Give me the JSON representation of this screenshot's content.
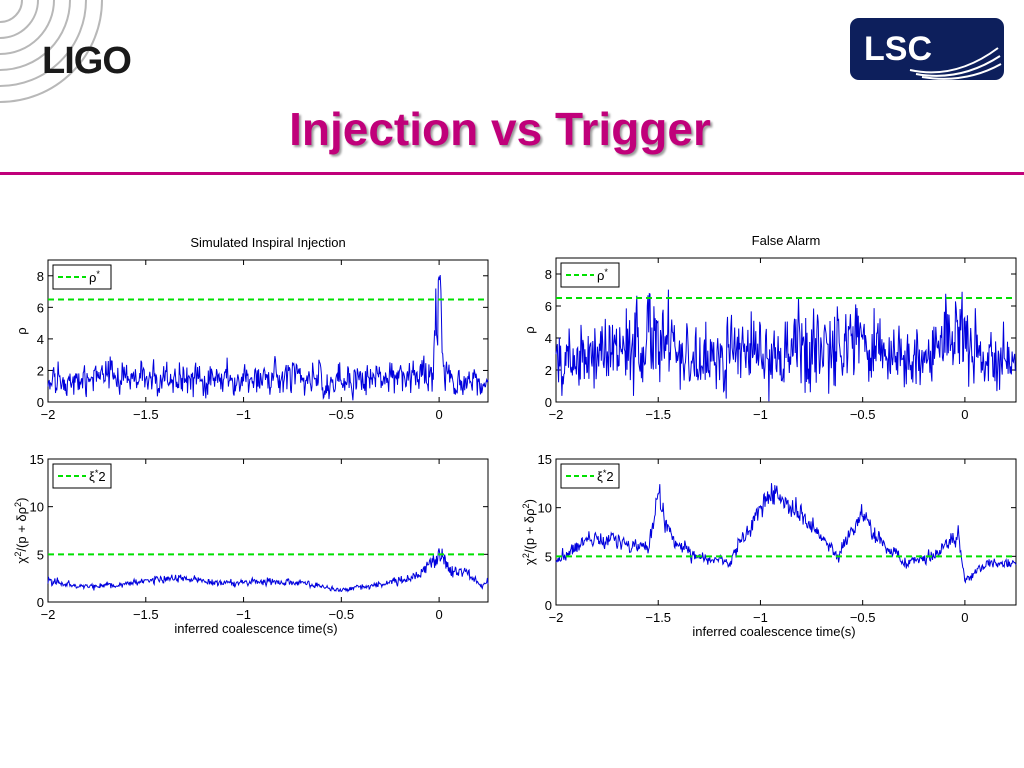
{
  "header": {
    "logo_text": "LIGO",
    "badge_text": "LSC",
    "title": "Injection vs Trigger",
    "colors": {
      "title": "#c0007a",
      "rule": "#c0007a",
      "badge": "#0d1f5c"
    }
  },
  "chart_data": [
    {
      "type": "line",
      "panel": "top-left",
      "title": "Simulated Inspiral Injection",
      "xlabel": "",
      "ylabel": "ρ",
      "xlim": [
        -2,
        0.25
      ],
      "ylim": [
        0,
        9
      ],
      "xticks": [
        "−2",
        "−1.5",
        "−1",
        "−0.5",
        "0"
      ],
      "yticks": [
        "0",
        "2",
        "4",
        "6",
        "8"
      ],
      "legend": "top-left",
      "threshold": {
        "name": "ρ*",
        "value": 6.5,
        "color": "#00e000",
        "dashed": true
      },
      "series": [
        {
          "color": "#0000dd",
          "base": 1.3,
          "noise": 0.75,
          "smooth": 0.3,
          "x": [
            -2,
            -1.7,
            -1.45,
            -1.2,
            -0.99,
            -0.72,
            -0.5,
            -0.3,
            -0.1,
            -0.03,
            0,
            0.02,
            0.1,
            0.25
          ],
          "y": [
            1.2,
            1.6,
            1.4,
            1.5,
            1.3,
            1.6,
            1.4,
            1.5,
            1.5,
            2.2,
            7.8,
            2.0,
            1.2,
            1.2
          ]
        }
      ]
    },
    {
      "type": "line",
      "panel": "top-right",
      "title": "False Alarm",
      "xlabel": "",
      "ylabel": "ρ",
      "xlim": [
        -2,
        0.25
      ],
      "ylim": [
        0,
        9
      ],
      "xticks": [
        "−2",
        "−1.5",
        "−1",
        "−0.5",
        "0"
      ],
      "yticks": [
        "0",
        "2",
        "4",
        "6",
        "8"
      ],
      "legend": "top-left",
      "threshold": {
        "name": "ρ*",
        "value": 6.5,
        "color": "#00e000",
        "dashed": true
      },
      "series": [
        {
          "color": "#0000dd",
          "base": 2.6,
          "noise": 1.5,
          "smooth": 0.15,
          "x": [
            -2,
            -1.8,
            -1.65,
            -1.5,
            -1.35,
            -1.15,
            -1.0,
            -0.8,
            -0.6,
            -0.5,
            -0.3,
            -0.15,
            0,
            0.1,
            0.25
          ],
          "y": [
            2.4,
            3.0,
            3.6,
            4.2,
            2.6,
            3.0,
            2.8,
            3.8,
            3.2,
            3.8,
            2.6,
            3.0,
            4.6,
            2.4,
            2.8
          ]
        }
      ]
    },
    {
      "type": "line",
      "panel": "bottom-left",
      "title": "",
      "xlabel": "inferred coalescence time(s)",
      "ylabel": "χ²/(p + δρ²)",
      "xlim": [
        -2,
        0.25
      ],
      "ylim": [
        0,
        15
      ],
      "xticks": [
        "−2",
        "−1.5",
        "−1",
        "−0.5",
        "0"
      ],
      "yticks": [
        "0",
        "5",
        "10",
        "15"
      ],
      "legend": "top-left",
      "threshold": {
        "name": "ξ*2",
        "value": 5,
        "color": "#00e000",
        "dashed": true
      },
      "series": [
        {
          "color": "#0000dd",
          "base": 2.0,
          "noise": 0.3,
          "smooth": 0.12,
          "x": [
            -2,
            -1.85,
            -1.6,
            -1.35,
            -1.1,
            -0.9,
            -0.7,
            -0.52,
            -0.3,
            -0.12,
            -0.03,
            0,
            0.05,
            0.15,
            0.22,
            0.25
          ],
          "y": [
            2.3,
            1.6,
            1.9,
            2.6,
            1.9,
            2.2,
            2.0,
            1.2,
            1.9,
            2.6,
            4.2,
            5.3,
            3.3,
            3.0,
            1.6,
            2.2
          ]
        }
      ]
    },
    {
      "type": "line",
      "panel": "bottom-right",
      "title": "",
      "xlabel": "inferred coalescence time(s)",
      "ylabel": "χ²/(p + δρ²)",
      "xlim": [
        -2,
        0.25
      ],
      "ylim": [
        0,
        15
      ],
      "xticks": [
        "−2",
        "−1.5",
        "−1",
        "−0.5",
        "0"
      ],
      "yticks": [
        "0",
        "5",
        "10",
        "15"
      ],
      "legend": "top-left",
      "threshold": {
        "name": "ξ*2",
        "value": 5,
        "color": "#00e000",
        "dashed": true
      },
      "series": [
        {
          "color": "#0000dd",
          "base": 5.5,
          "noise": 0.55,
          "smooth": 0.2,
          "x": [
            -2,
            -1.85,
            -1.7,
            -1.55,
            -1.5,
            -1.42,
            -1.3,
            -1.15,
            -0.95,
            -0.85,
            -0.75,
            -0.62,
            -0.5,
            -0.45,
            -0.3,
            -0.15,
            -0.03,
            0,
            0.1,
            0.25
          ],
          "y": [
            4.5,
            6.8,
            6.5,
            6.0,
            10.8,
            6.5,
            4.8,
            4.5,
            11.8,
            10.0,
            8.0,
            5.0,
            9.5,
            7.5,
            4.2,
            5.0,
            7.2,
            2.5,
            4.0,
            4.5
          ]
        }
      ]
    }
  ]
}
